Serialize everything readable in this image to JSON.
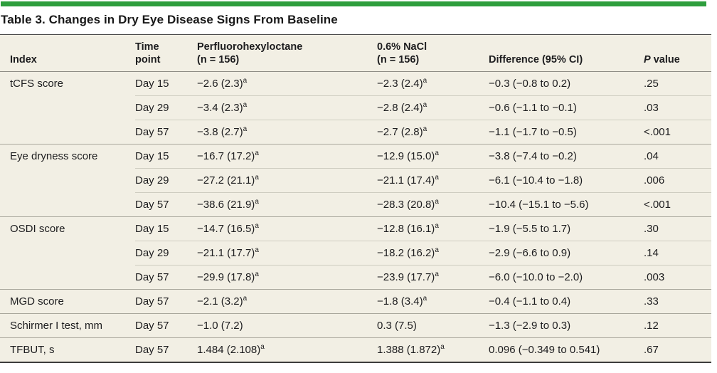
{
  "title": "Table 3. Changes in Dry Eye Disease Signs From Baseline",
  "colors": {
    "accent_green": "#2e9e3d",
    "table_background": "#f2efe4",
    "text": "#1d1d1f"
  },
  "table": {
    "headers": {
      "index": "Index",
      "time_line1": "Time",
      "time_line2": "point",
      "drug_line1": "Perfluorohexyloctane",
      "drug_line2": "(n = 156)",
      "nacl_line1": "0.6% NaCl",
      "nacl_line2": "(n = 156)",
      "difference": "Difference (95% CI)",
      "p_italic": "P",
      "p_rest": " value"
    },
    "footnote_marker": "a",
    "groups": [
      {
        "index": "tCFS score",
        "rows": [
          {
            "time": "Day 15",
            "drug": "−2.6 (2.3)^a",
            "nacl": "−2.3 (2.4)^a",
            "diff": "−0.3 (−0.8 to 0.2)",
            "p": ".25"
          },
          {
            "time": "Day 29",
            "drug": "−3.4 (2.3)^a",
            "nacl": "−2.8 (2.4)^a",
            "diff": "−0.6 (−1.1 to −0.1)",
            "p": ".03"
          },
          {
            "time": "Day 57",
            "drug": "−3.8 (2.7)^a",
            "nacl": "−2.7 (2.8)^a",
            "diff": "−1.1 (−1.7 to −0.5)",
            "p": "<.001"
          }
        ]
      },
      {
        "index": "Eye dryness score",
        "rows": [
          {
            "time": "Day 15",
            "drug": "−16.7 (17.2)^a",
            "nacl": "−12.9 (15.0)^a",
            "diff": "−3.8 (−7.4 to −0.2)",
            "p": ".04"
          },
          {
            "time": "Day 29",
            "drug": "−27.2 (21.1)^a",
            "nacl": "−21.1 (17.4)^a",
            "diff": "−6.1 (−10.4 to −1.8)",
            "p": ".006"
          },
          {
            "time": "Day 57",
            "drug": "−38.6 (21.9)^a",
            "nacl": "−28.3 (20.8)^a",
            "diff": "−10.4 (−15.1 to −5.6)",
            "p": "<.001"
          }
        ]
      },
      {
        "index": "OSDI score",
        "rows": [
          {
            "time": "Day 15",
            "drug": "−14.7 (16.5)^a",
            "nacl": "−12.8 (16.1)^a",
            "diff": "−1.9 (−5.5 to 1.7)",
            "p": ".30"
          },
          {
            "time": "Day 29",
            "drug": "−21.1 (17.7)^a",
            "nacl": "−18.2 (16.2)^a",
            "diff": "−2.9 (−6.6 to 0.9)",
            "p": ".14"
          },
          {
            "time": "Day 57",
            "drug": "−29.9 (17.8)^a",
            "nacl": "−23.9 (17.7)^a",
            "diff": "−6.0 (−10.0 to −2.0)",
            "p": ".003"
          }
        ]
      },
      {
        "index": "MGD score",
        "rows": [
          {
            "time": "Day 57",
            "drug": "−2.1 (3.2)^a",
            "nacl": "−1.8 (3.4)^a",
            "diff": "−0.4 (−1.1 to 0.4)",
            "p": ".33"
          }
        ]
      },
      {
        "index": "Schirmer I test, mm",
        "rows": [
          {
            "time": "Day 57",
            "drug": "−1.0 (7.2)",
            "nacl": "0.3 (7.5)",
            "diff": "−1.3 (−2.9 to 0.3)",
            "p": ".12"
          }
        ]
      },
      {
        "index": "TFBUT, s",
        "rows": [
          {
            "time": "Day 57",
            "drug": "1.484 (2.108)^a",
            "nacl": "1.388 (1.872)^a",
            "diff": "0.096 (−0.349 to 0.541)",
            "p": ".67"
          }
        ]
      }
    ]
  }
}
